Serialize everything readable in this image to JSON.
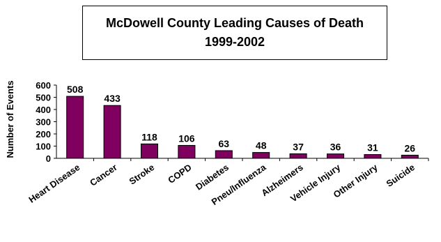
{
  "chart_data": {
    "type": "bar",
    "title": "McDowell County Leading Causes of Death",
    "subtitle": "1999-2002",
    "xlabel": "",
    "ylabel": "Number of Events",
    "ylim": [
      0,
      600
    ],
    "yticks": [
      0,
      100,
      200,
      300,
      400,
      500,
      600
    ],
    "categories": [
      "Heart Disease",
      "Cancer",
      "Stroke",
      "COPD",
      "Diabetes",
      "Pneu/Influenza",
      "Alzheimers",
      "Vehicle Injury",
      "Other Injury",
      "Suicide"
    ],
    "values": [
      508,
      433,
      118,
      106,
      63,
      48,
      37,
      36,
      31,
      26
    ],
    "data_labels": [
      "508",
      "433",
      "118",
      "106",
      "63",
      "48",
      "37",
      "36",
      "31",
      "26"
    ],
    "grid": false,
    "legend": "none",
    "bar_color": "#800060",
    "bar_outline": "#000000"
  }
}
